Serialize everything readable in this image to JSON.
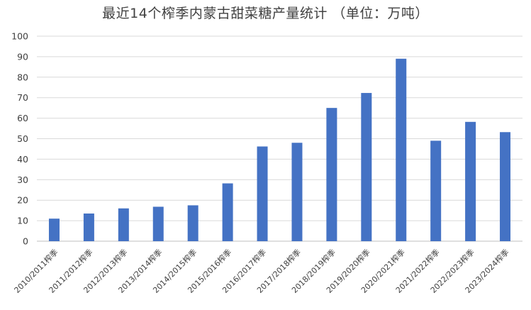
{
  "chart_data": {
    "type": "bar",
    "title": "最近14个榨季内蒙古甜菜糖产量统计 （单位：万吨）",
    "xlabel": "",
    "ylabel": "",
    "ylim": [
      0,
      100
    ],
    "yticks": [
      0,
      10,
      20,
      30,
      40,
      50,
      60,
      70,
      80,
      90,
      100
    ],
    "grid": true,
    "legend": "none",
    "bar_color": "#4472C4",
    "categories": [
      "2010/2011榨季",
      "2011/2012榨季",
      "2012/2013榨季",
      "2013/2014榨季",
      "2014/2015榨季",
      "2015/2016榨季",
      "2016/2017榨季",
      "2017/2018榨季",
      "2018/2019榨季",
      "2019/2020榨季",
      "2020/2021榨季",
      "2021/2022榨季",
      "2022/2023榨季",
      "2023/2024榨季"
    ],
    "values": [
      11,
      13.5,
      16,
      16.8,
      17.5,
      28.2,
      46.2,
      48,
      65,
      72.3,
      89,
      49,
      58.2,
      53.2
    ]
  }
}
